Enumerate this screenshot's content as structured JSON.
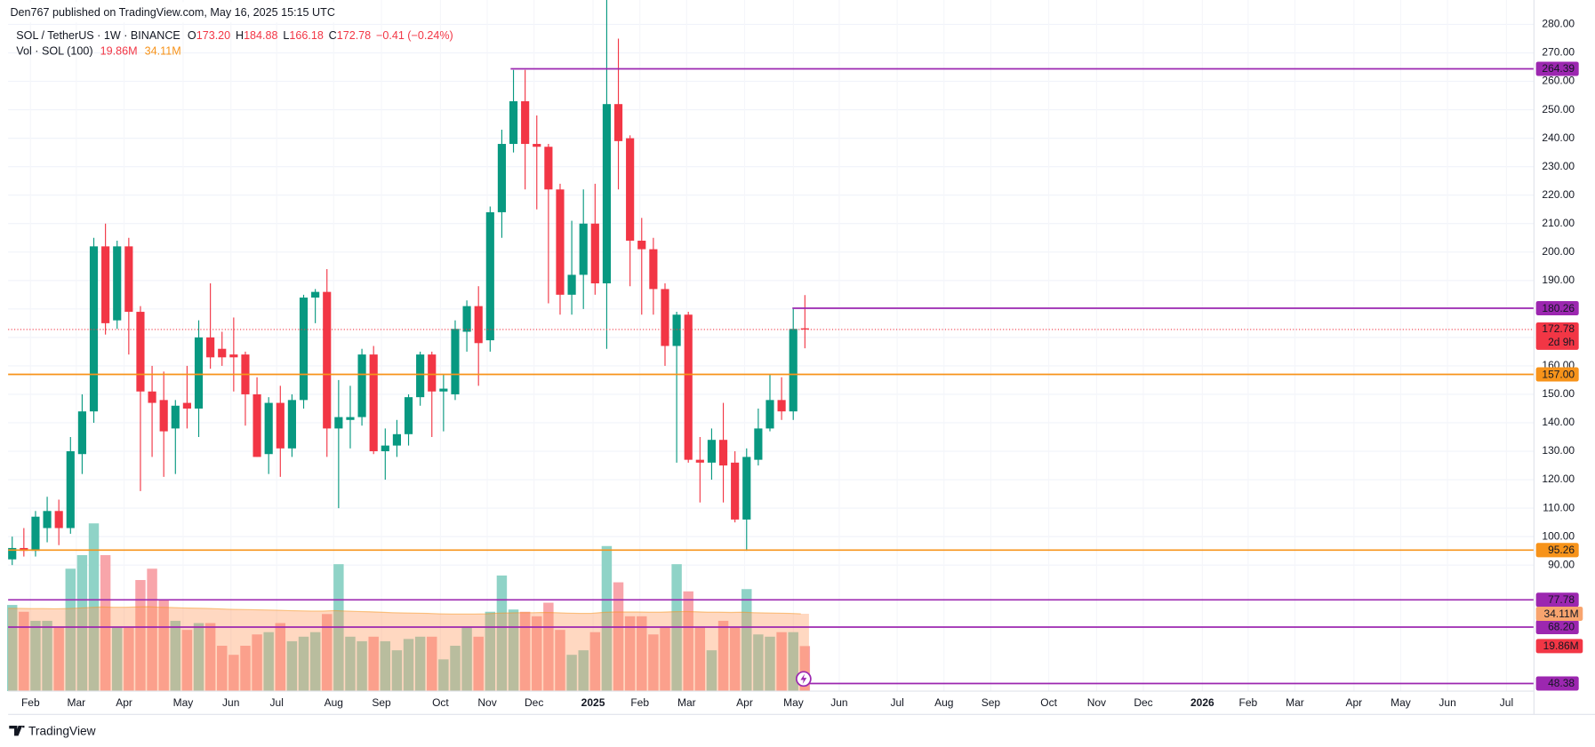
{
  "header": {
    "published": "Den767 published on TradingView.com, May 16, 2025 15:15 UTC",
    "legend": {
      "symbol": "SOL / TetherUS · 1W · BINANCE",
      "o": "O",
      "open": "173.20",
      "h": "H",
      "high": "184.88",
      "l": "L",
      "low": "166.18",
      "c": "C",
      "close": "172.78",
      "change": "−0.41 (−0.24%)"
    },
    "brand": "TradingView"
  },
  "chart_data": {
    "type": "candlestick",
    "up_color": "#089981",
    "down_color": "#f23645",
    "open": [
      92,
      96,
      95,
      103,
      109,
      103,
      129,
      144,
      202,
      176,
      202,
      179,
      151,
      148,
      138,
      147,
      145,
      170,
      166,
      164,
      164,
      150,
      129,
      147,
      131,
      148,
      184,
      186,
      138,
      141,
      142,
      164,
      130,
      132,
      136,
      149,
      164,
      151,
      150,
      172,
      181,
      169,
      214,
      238,
      253,
      238,
      237,
      222,
      185,
      192,
      210,
      189,
      252,
      240,
      204,
      201,
      187,
      167,
      178,
      127,
      126,
      134,
      126,
      106,
      127,
      138,
      148,
      144,
      173.2
    ],
    "high": [
      100,
      103,
      109,
      114,
      113,
      135,
      150,
      205,
      210,
      204,
      205,
      181,
      160,
      158,
      148,
      160,
      176,
      189,
      172,
      177,
      165,
      156,
      149,
      153,
      150,
      185,
      187,
      194,
      155,
      153,
      166,
      167,
      138,
      141,
      150,
      165,
      165,
      157,
      176,
      183,
      188,
      216,
      243,
      264,
      264,
      248,
      238,
      224,
      211,
      222,
      224,
      294,
      275,
      241,
      212,
      205,
      189,
      179,
      179,
      135,
      138,
      147,
      130,
      131,
      145,
      157,
      156,
      180.26,
      184.88
    ],
    "low": [
      90,
      93,
      93,
      98,
      97,
      101,
      122,
      140,
      171,
      173,
      164,
      116,
      128,
      121,
      122,
      138,
      135,
      159,
      160,
      151,
      139,
      128,
      122,
      121,
      128,
      145,
      175,
      128,
      110,
      131,
      139,
      129,
      120,
      128,
      132,
      146,
      135,
      137,
      148,
      165,
      153,
      165,
      205,
      235,
      222,
      215,
      182,
      178,
      178,
      180,
      185,
      166,
      222,
      188,
      178,
      178,
      160,
      126,
      126,
      112,
      120,
      112,
      105,
      95,
      125,
      137,
      141,
      141,
      166.18
    ],
    "close": [
      96,
      95,
      107,
      109,
      103,
      130,
      144,
      202,
      175,
      202,
      179,
      151,
      147,
      137,
      146,
      145,
      170,
      163,
      163,
      163,
      150,
      128,
      147,
      131,
      148,
      184,
      186,
      138,
      142,
      142,
      164,
      130,
      132,
      136,
      149,
      164,
      151,
      152,
      173,
      181,
      168,
      214,
      238,
      253,
      238,
      237,
      222,
      185,
      192,
      210,
      189,
      252,
      239,
      204,
      201,
      187,
      167,
      178,
      127,
      126,
      134,
      125,
      106,
      128,
      138,
      148,
      144,
      173,
      172.78
    ],
    "ylim": [
      45.714,
      288.571
    ],
    "yticks": [
      {
        "value": 90,
        "label": "90.00"
      },
      {
        "value": 100,
        "label": "100.00"
      },
      {
        "value": 110,
        "label": "110.00"
      },
      {
        "value": 120,
        "label": "120.00"
      },
      {
        "value": 130,
        "label": "130.00"
      },
      {
        "value": 140,
        "label": "140.00"
      },
      {
        "value": 150,
        "label": "150.00"
      },
      {
        "value": 160,
        "label": "160.00"
      },
      {
        "value": 170,
        "label": "170.00"
      },
      {
        "value": 180,
        "label": "180.00"
      },
      {
        "value": 190,
        "label": "190.00"
      },
      {
        "value": 200,
        "label": "200.00"
      },
      {
        "value": 210,
        "label": "210.00"
      },
      {
        "value": 220,
        "label": "220.00"
      },
      {
        "value": 230,
        "label": "230.00"
      },
      {
        "value": 240,
        "label": "240.00"
      },
      {
        "value": 250,
        "label": "250.00"
      },
      {
        "value": 260,
        "label": "260.00"
      },
      {
        "value": 270,
        "label": "270.00"
      },
      {
        "value": 280,
        "label": "280.00"
      }
    ],
    "grid": true,
    "xticks": [
      "Feb",
      "Mar",
      "Apr",
      "May",
      "Jun",
      "Jul",
      "Aug",
      "Sep",
      "Oct",
      "Nov",
      "Dec",
      "2025",
      "Feb",
      "Mar",
      "Apr",
      "May",
      "Jun",
      "Jul",
      "Aug",
      "Sep",
      "Oct",
      "Nov",
      "Dec",
      "2026",
      "Feb",
      "Mar",
      "Apr",
      "May",
      "Jun",
      "Jul"
    ],
    "levels": [
      {
        "value": 264.39,
        "label": "264.39",
        "color": "#9c27b0"
      },
      {
        "value": 180.26,
        "label": "180.26",
        "color": "#9c27b0"
      },
      {
        "value": 157,
        "label": "157.00",
        "color": "#f7931a"
      },
      {
        "value": 95.26,
        "label": "95.26",
        "color": "#f7931a"
      },
      {
        "value": 77.78,
        "label": "77.78",
        "color": "#9c27b0"
      },
      {
        "value": 68.2,
        "label": "68.20",
        "color": "#9c27b0"
      },
      {
        "value": 48.38,
        "label": "48.38",
        "color": "#9c27b0"
      }
    ],
    "last_price": {
      "value": 172.78,
      "label": "172.78",
      "countdown": "2d 9h"
    },
    "volume": {
      "name": "Vol · SOL (100)",
      "ylim": [
        0,
        100
      ],
      "values": [
        38,
        35,
        31,
        31,
        28,
        54,
        60,
        74,
        60,
        28,
        28,
        49,
        54,
        40,
        31,
        27,
        30,
        30,
        20,
        16,
        20,
        25,
        26,
        30,
        22,
        24,
        26,
        34,
        56,
        24,
        22,
        24,
        22,
        18,
        23,
        24,
        24,
        14,
        20,
        28,
        24,
        35,
        51,
        36,
        35,
        33,
        39,
        27,
        16,
        18,
        26,
        64,
        48,
        33,
        33,
        25,
        28,
        56,
        44,
        28,
        18,
        31,
        28,
        45,
        25,
        24,
        26,
        26,
        19.86
      ],
      "ma": [
        36.5,
        36.5,
        36.4,
        36.4,
        36.3,
        36.4,
        36.6,
        36.9,
        37.1,
        37.0,
        37.0,
        37.1,
        37.2,
        37.0,
        36.9,
        36.7,
        36.6,
        36.5,
        36.3,
        36.1,
        36.0,
        35.9,
        35.8,
        35.7,
        35.5,
        35.4,
        35.3,
        35.3,
        35.5,
        35.3,
        35.1,
        35.0,
        34.8,
        34.6,
        34.5,
        34.4,
        34.3,
        34.1,
        34.0,
        34.0,
        34.0,
        34.1,
        34.4,
        34.5,
        34.6,
        34.6,
        34.7,
        34.6,
        34.4,
        34.3,
        34.3,
        34.7,
        34.9,
        34.9,
        34.9,
        34.8,
        34.8,
        35.0,
        35.1,
        35.0,
        34.8,
        34.8,
        34.7,
        34.8,
        34.6,
        34.5,
        34.4,
        34.3,
        34.11
      ],
      "last_label": "19.86M",
      "ma_label": "34.11M"
    }
  }
}
